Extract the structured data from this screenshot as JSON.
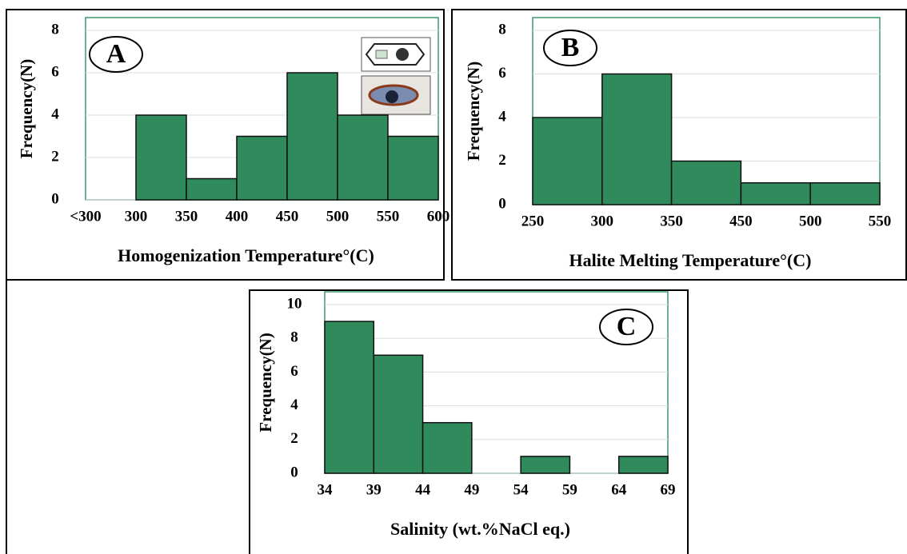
{
  "chart_data": [
    {
      "type": "histogram",
      "panel_label": "A",
      "ylabel": "Frequency(N)",
      "xlabel": "Homogenization Temperature°(C)",
      "bins": [
        250,
        300,
        350,
        400,
        450,
        500,
        550,
        600
      ],
      "values": [
        0,
        4,
        1,
        3,
        6,
        4,
        3
      ],
      "xticks": [
        {
          "value": 250,
          "label": "<300"
        },
        300,
        350,
        400,
        450,
        500,
        550,
        600
      ],
      "ylim": [
        0,
        8
      ],
      "yticks": [
        0,
        2,
        4,
        6,
        8
      ],
      "color": "#2f8a5c",
      "grid": true
    },
    {
      "type": "histogram",
      "panel_label": "B",
      "ylabel": "Frequency(N)",
      "xlabel": "Halite Melting Temperature°(C)",
      "bins": [
        250,
        300,
        350,
        450,
        500,
        550
      ],
      "values": [
        4,
        6,
        2,
        1,
        1
      ],
      "xticks": [
        250,
        300,
        350,
        450,
        500,
        550
      ],
      "ylim": [
        0,
        8
      ],
      "yticks": [
        0,
        2,
        4,
        6,
        8
      ],
      "color": "#2f8a5c",
      "grid": true
    },
    {
      "type": "histogram",
      "panel_label": "C",
      "ylabel": "Frequency(N)",
      "xlabel": "Salinity (wt.%NaCl eq.)",
      "bins": [
        34,
        39,
        44,
        49,
        54,
        59,
        64,
        69
      ],
      "values": [
        9,
        7,
        3,
        0,
        1,
        0,
        1
      ],
      "xticks": [
        34,
        39,
        44,
        49,
        54,
        59,
        64,
        69
      ],
      "ylim": [
        0,
        10
      ],
      "yticks": [
        0,
        2,
        4,
        6,
        8,
        10
      ],
      "color": "#2f8a5c",
      "grid": true
    }
  ]
}
